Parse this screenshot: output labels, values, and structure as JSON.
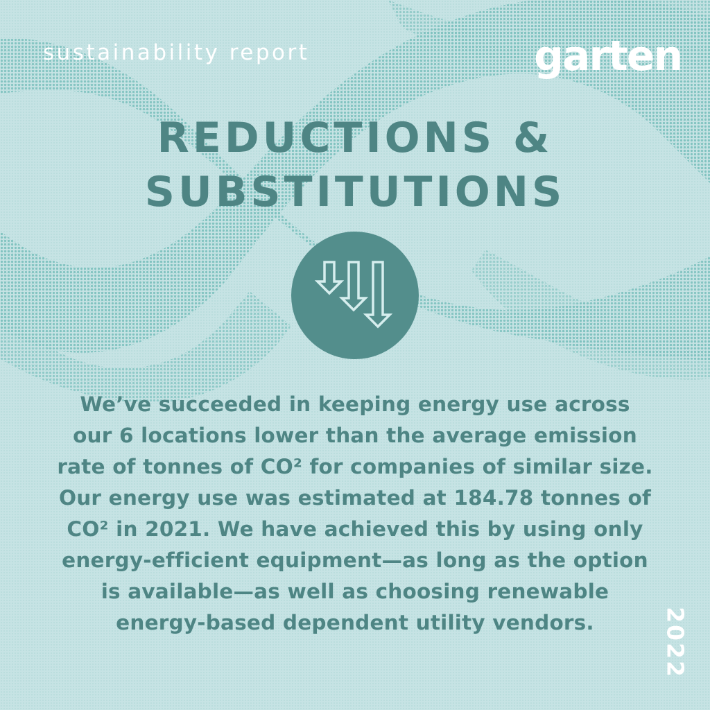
{
  "header": {
    "report_label": "sustainability report",
    "brand": "garten"
  },
  "title": {
    "line1": "REDUCTIONS &",
    "line2": "SUBSTITUTIONS"
  },
  "badge": {
    "icon": "descending-arrows-icon"
  },
  "body": {
    "text": "We’ve succeeded in keeping energy use across our 6 locations lower than the average emission rate of tonnes of CO² for companies of similar size. Our energy use was estimated at 184.78 tonnes of CO² in 2021. We have achieved this by using only energy-efficient equipment—as long as the option is available—as well as choosing renewable energy-based dependent utility vendors."
  },
  "year": "2022",
  "colors": {
    "background": "#c6e3e4",
    "pattern": "#8ac8c6",
    "accent": "#4e8584",
    "badge": "#538e8c",
    "white": "#ffffff"
  }
}
